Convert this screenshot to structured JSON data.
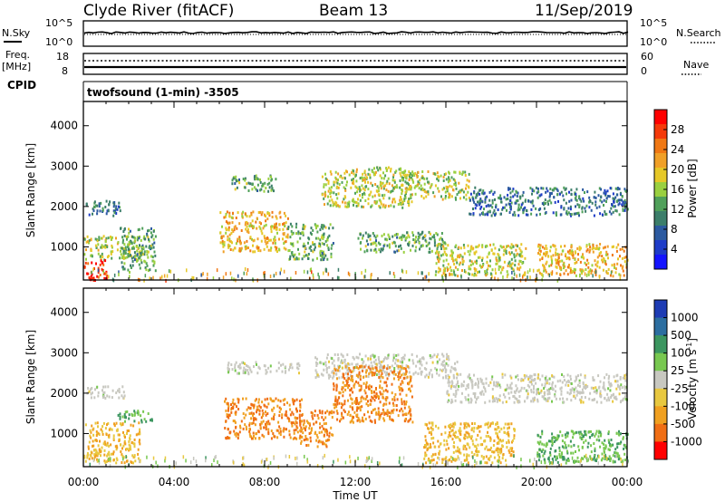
{
  "header": {
    "station": "Clyde River (fitACF)",
    "beam": "Beam 13",
    "date": "11/Sep/2019"
  },
  "noise_panel": {
    "left_label": "N.Sky",
    "right_label": "N.Search",
    "tick_top": "10^5",
    "tick_bottom": "10^0"
  },
  "freq_panel": {
    "left_label": "Freq.",
    "left_unit": "[MHz]",
    "right_label": "Nave",
    "left_ticks": [
      "18",
      "8"
    ],
    "right_ticks": [
      "60",
      "0"
    ]
  },
  "cpid_panel": {
    "label": "CPID",
    "text": "twofsound (1-min) -3505"
  },
  "power_panel": {
    "ylabel": "Slant Range [km]",
    "yticks": [
      "4000",
      "3000",
      "2000",
      "1000"
    ],
    "colorbar_label": "Power [dB]",
    "colorbar_ticks": [
      "28",
      "24",
      "20",
      "16",
      "12",
      "8",
      "4"
    ],
    "colorbar_colors": [
      "#ff0000",
      "#f53a0a",
      "#f07814",
      "#f0a028",
      "#e6c828",
      "#9ad040",
      "#50a05a",
      "#3c7e6a",
      "#2c5aa0",
      "#1e3cc8",
      "#1414ff"
    ]
  },
  "velocity_panel": {
    "ylabel": "Slant Range [km]",
    "yticks": [
      "4000",
      "3000",
      "2000",
      "1000"
    ],
    "colorbar_label": "Velocity [m s",
    "colorbar_label_sup": "-1",
    "colorbar_label_end": "]",
    "colorbar_ticks": [
      "1000",
      "500",
      "100",
      "25",
      "-25",
      "-100",
      "-500",
      "-1000"
    ],
    "colorbar_colors": [
      "#1e3cb4",
      "#2c6ea0",
      "#3c9660",
      "#78c850",
      "#c8c8c0",
      "#e8c840",
      "#f0a020",
      "#f06e14",
      "#ff0000"
    ]
  },
  "x_axis": {
    "ticks": [
      "00:00",
      "04:00",
      "08:00",
      "12:00",
      "16:00",
      "20:00",
      "00:00"
    ],
    "label": "Time UT"
  },
  "chart_data": {
    "type": "heatmap",
    "x_unit": "hours UT",
    "xlim": [
      0,
      24
    ],
    "ylim": [
      180,
      4600
    ],
    "power_regions": [
      {
        "x": [
          0.1,
          1.6
        ],
        "y": [
          1800,
          2200
        ],
        "level": 8
      },
      {
        "x": [
          0.0,
          2.5
        ],
        "y": [
          700,
          1300
        ],
        "level": 16
      },
      {
        "x": [
          0.0,
          1.0
        ],
        "y": [
          200,
          700
        ],
        "level": 28
      },
      {
        "x": [
          1.6,
          3.2
        ],
        "y": [
          400,
          1500
        ],
        "level": 12
      },
      {
        "x": [
          6.0,
          9.0
        ],
        "y": [
          900,
          1900
        ],
        "level": 20
      },
      {
        "x": [
          6.5,
          8.5
        ],
        "y": [
          2400,
          2800
        ],
        "level": 12
      },
      {
        "x": [
          9.0,
          11.0
        ],
        "y": [
          700,
          1600
        ],
        "level": 12
      },
      {
        "x": [
          10.5,
          14.5
        ],
        "y": [
          2000,
          3000
        ],
        "level": 16
      },
      {
        "x": [
          12.0,
          16.0
        ],
        "y": [
          900,
          1400
        ],
        "level": 12
      },
      {
        "x": [
          14.0,
          17.0
        ],
        "y": [
          2200,
          2900
        ],
        "level": 16
      },
      {
        "x": [
          15.5,
          19.5
        ],
        "y": [
          300,
          1100
        ],
        "level": 16
      },
      {
        "x": [
          17.0,
          24.0
        ],
        "y": [
          1800,
          2500
        ],
        "level": 8
      },
      {
        "x": [
          20.0,
          24.0
        ],
        "y": [
          300,
          1100
        ],
        "level": 20
      }
    ],
    "velocity_regions": [
      {
        "x": [
          0.1,
          1.8
        ],
        "y": [
          1900,
          2200
        ],
        "velocity": 0
      },
      {
        "x": [
          0.0,
          2.5
        ],
        "y": [
          300,
          1300
        ],
        "velocity": -100
      },
      {
        "x": [
          1.5,
          3.0
        ],
        "y": [
          1300,
          1600
        ],
        "velocity": 100
      },
      {
        "x": [
          6.2,
          9.6
        ],
        "y": [
          900,
          1900
        ],
        "velocity": -500
      },
      {
        "x": [
          6.3,
          9.5
        ],
        "y": [
          2500,
          2800
        ],
        "velocity": 0
      },
      {
        "x": [
          9.5,
          11.0
        ],
        "y": [
          700,
          1600
        ],
        "velocity": -500
      },
      {
        "x": [
          10.2,
          16.5
        ],
        "y": [
          2400,
          3000
        ],
        "velocity": 0
      },
      {
        "x": [
          11.0,
          14.5
        ],
        "y": [
          1300,
          2700
        ],
        "velocity": -500
      },
      {
        "x": [
          16.0,
          24.0
        ],
        "y": [
          1800,
          2500
        ],
        "velocity": 0
      },
      {
        "x": [
          15.0,
          19.0
        ],
        "y": [
          300,
          1300
        ],
        "velocity": -100
      },
      {
        "x": [
          20.0,
          24.0
        ],
        "y": [
          300,
          1100
        ],
        "velocity": 100
      }
    ]
  }
}
